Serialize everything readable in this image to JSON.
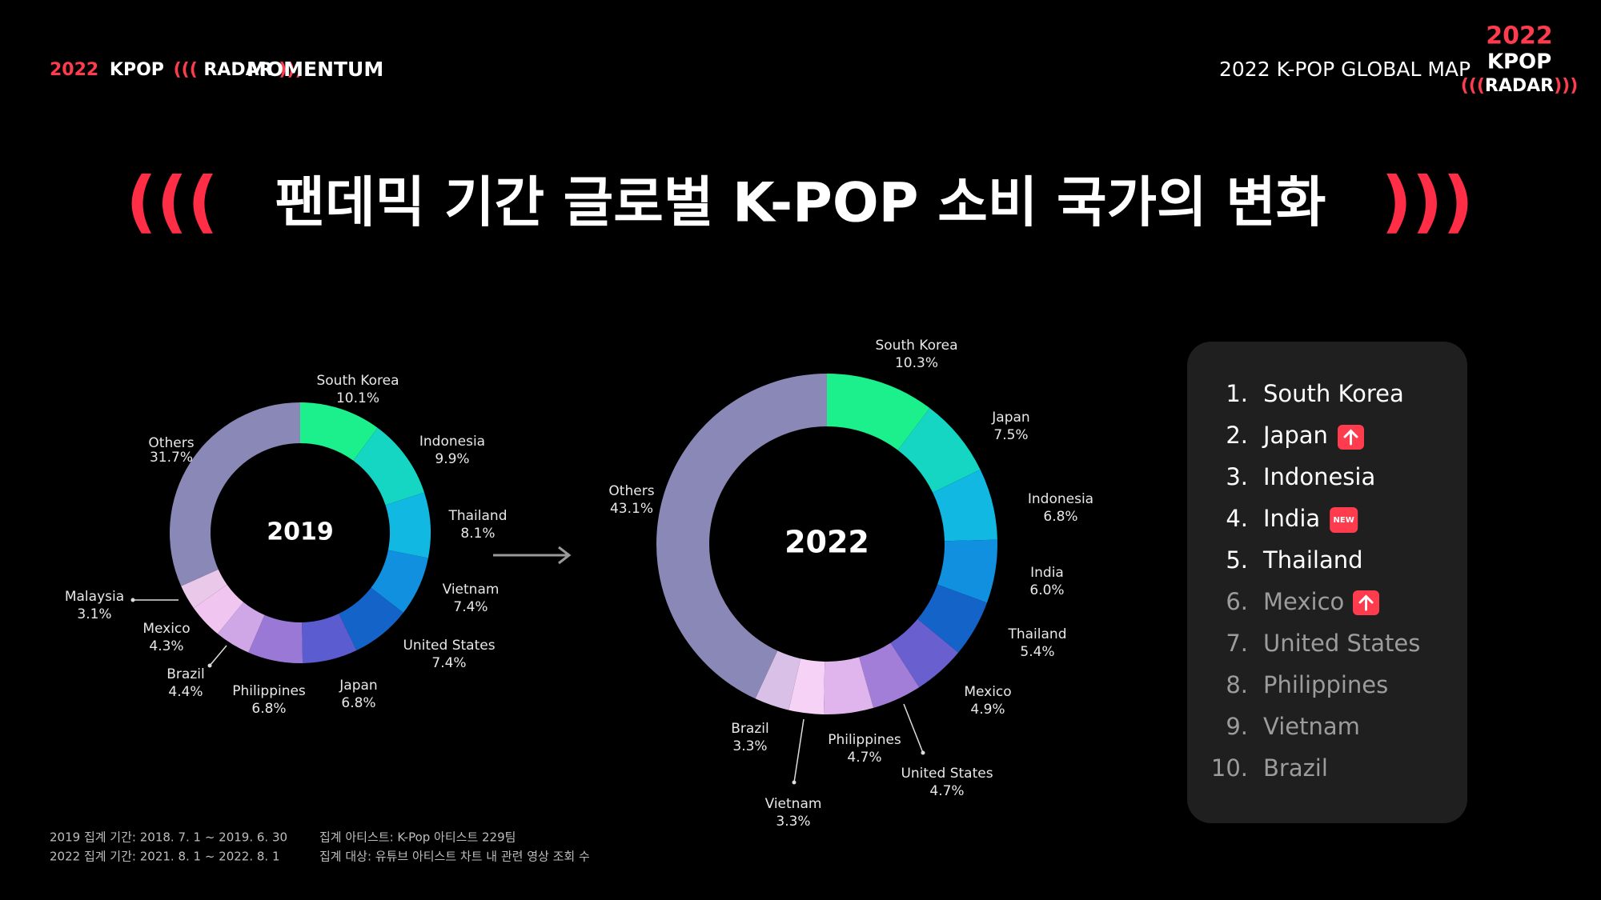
{
  "header": {
    "logo": [
      "2022",
      "KPOP",
      "(((",
      "RADAR",
      ")))"
    ],
    "label": "MOMENTUM",
    "right_title": "2022 K-POP GLOBAL MAP",
    "badge": [
      "2022",
      "KPOP",
      "(((",
      "RADAR",
      ")))"
    ]
  },
  "title": {
    "left_mark": "(((",
    "text": "팬데믹 기간 글로벌 K-POP 소비 국가의 변화",
    "right_mark": ")))"
  },
  "chart_data": [
    {
      "type": "pie",
      "title": "2019",
      "categories": [
        "South Korea",
        "Indonesia",
        "Thailand",
        "Vietnam",
        "United States",
        "Japan",
        "Philippines",
        "Brazil",
        "Mexico",
        "Malaysia",
        "Others"
      ],
      "values": [
        10.1,
        9.9,
        8.1,
        7.4,
        7.4,
        6.8,
        6.8,
        4.4,
        4.3,
        3.1,
        31.7
      ],
      "value_labels": [
        "10.1%",
        "9.9%",
        "8.1%",
        "7.4%",
        "7.4%",
        "6.8%",
        "6.8%",
        "4.4%",
        "4.3%",
        "3.1%",
        "31.7%"
      ],
      "colors": [
        "#1cf08c",
        "#14d6c2",
        "#10b8e2",
        "#1290e0",
        "#1463c8",
        "#5b5cd0",
        "#9a78d6",
        "#cfa6e6",
        "#f0c6f0",
        "#e9c8ea",
        "#8a88b6"
      ]
    },
    {
      "type": "pie",
      "title": "2022",
      "categories": [
        "South Korea",
        "Japan",
        "Indonesia",
        "India",
        "Thailand",
        "Mexico",
        "United States",
        "Philippines",
        "Vietnam",
        "Brazil",
        "Others"
      ],
      "values": [
        10.3,
        7.5,
        6.8,
        6.0,
        5.4,
        4.9,
        4.7,
        4.7,
        3.3,
        3.3,
        43.1
      ],
      "value_labels": [
        "10.3%",
        "7.5%",
        "6.8%",
        "6.0%",
        "5.4%",
        "4.9%",
        "4.7%",
        "4.7%",
        "3.3%",
        "3.3%",
        "43.1%"
      ],
      "colors": [
        "#1cf08c",
        "#14d6c2",
        "#10b8e2",
        "#1290e0",
        "#1463c8",
        "#6a5fcf",
        "#a27ed8",
        "#e0b4ec",
        "#f6d2f6",
        "#d8c0e6",
        "#8a88b6"
      ]
    }
  ],
  "ranking": [
    {
      "rank": "1.",
      "name": "South Korea"
    },
    {
      "rank": "2.",
      "name": "Japan"
    },
    {
      "rank": "3.",
      "name": "Indonesia"
    },
    {
      "rank": "4.",
      "name": "India",
      "badge": "NEW"
    },
    {
      "rank": "5.",
      "name": "Thailand"
    },
    {
      "rank": "6.",
      "name": "Mexico"
    },
    {
      "rank": "7.",
      "name": "United States"
    },
    {
      "rank": "8.",
      "name": "Philippines"
    },
    {
      "rank": "9.",
      "name": "Vietnam"
    },
    {
      "rank": "10.",
      "name": "Brazil"
    }
  ],
  "footnotes": [
    "2019 집계 기간: 2018. 7. 1 ~ 2019. 6. 30",
    "2022 집계 기간: 2021. 8. 1 ~ 2022. 8. 1",
    "집계 아티스트: K-Pop 아티스트 229팀",
    "집계 대상: 유튜브 아티스트 차트 내 관련 영상 조회 수"
  ]
}
